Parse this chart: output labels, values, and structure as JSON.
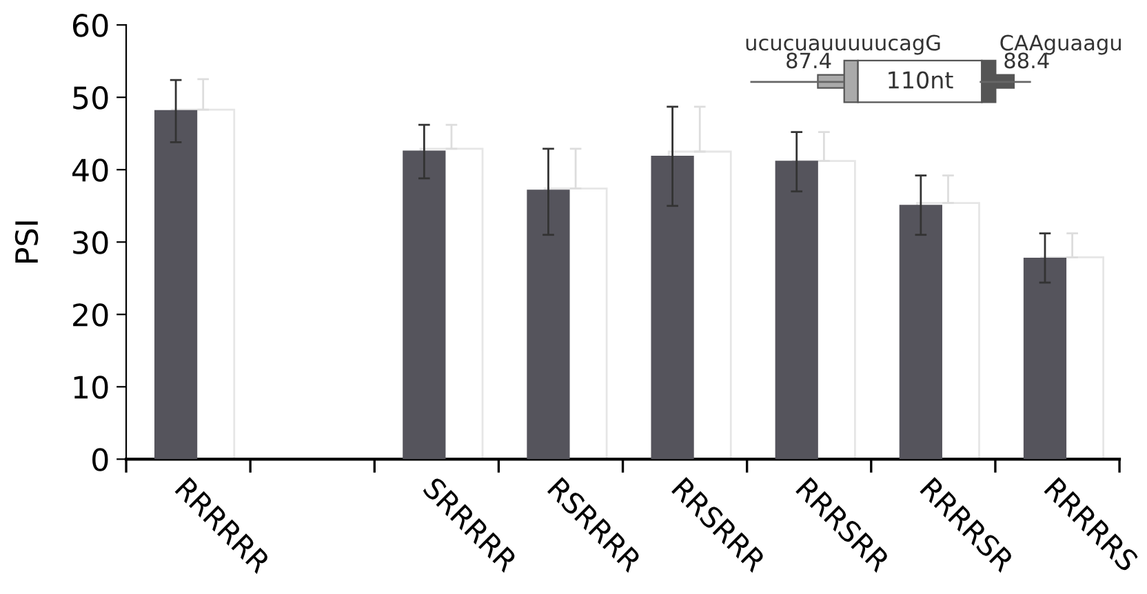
{
  "chart_data": {
    "type": "bar",
    "ylabel": "PSI",
    "categories": [
      "RRRRRR",
      null,
      "SRRRRR",
      "RSRRRR",
      "RRSRRR",
      "RRRSRR",
      "RRRRSR",
      "RRRRRS"
    ],
    "series": [
      {
        "color": "#ffffff",
        "values": [
          48.3,
          null,
          42.9,
          37.4,
          42.5,
          41.2,
          35.4,
          27.9
        ],
        "errors": [
          [
            48.3,
            52.5
          ],
          null,
          [
            42.9,
            46.2
          ],
          [
            37.4,
            42.9
          ],
          [
            42.5,
            48.7
          ],
          [
            41.2,
            45.2
          ],
          [
            35.4,
            39.2
          ],
          [
            27.9,
            31.2
          ]
        ]
      },
      {
        "color": "#55545c",
        "values": [
          48.1,
          null,
          42.5,
          37.1,
          41.8,
          41.1,
          35.0,
          27.7
        ],
        "errors": [
          [
            43.8,
            52.4
          ],
          null,
          [
            38.8,
            46.2
          ],
          [
            31.0,
            42.9
          ],
          [
            35.0,
            48.7
          ],
          [
            37.0,
            45.2
          ],
          [
            31.0,
            39.2
          ],
          [
            24.4,
            31.2
          ]
        ]
      }
    ],
    "ylim": [
      0,
      60
    ],
    "yticks": [
      0,
      10,
      20,
      30,
      40,
      50,
      60
    ],
    "grid": false,
    "legend": false,
    "annotations": [
      "ucucuauuuuucagG",
      "CAAguaagu",
      "87.4",
      "88.4",
      "110nt"
    ]
  }
}
